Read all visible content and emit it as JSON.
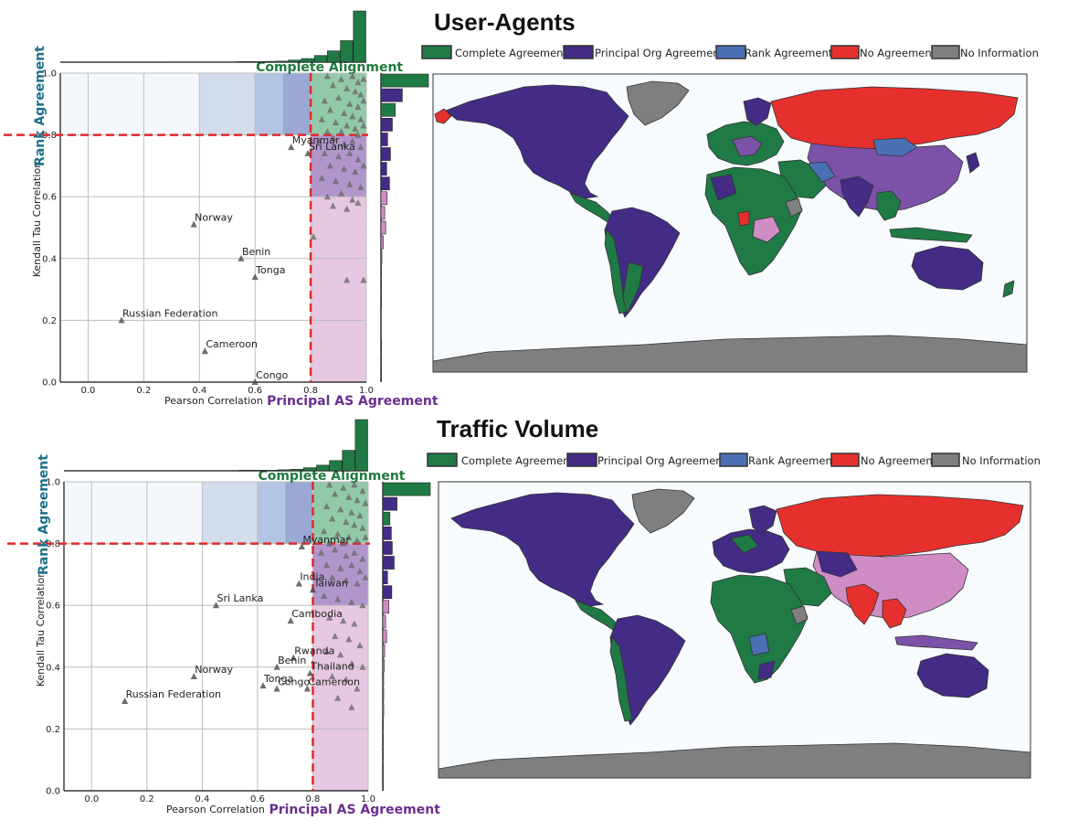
{
  "colors": {
    "complete": "#1f7a45",
    "principal": "#432b86",
    "rank": "#4a6fb5",
    "none": "#e5302e",
    "noinfo": "#7f7f7f",
    "pink": "#cf8cc5",
    "ocean": "#f8fbfe",
    "threshold": "#e02a2a"
  },
  "legend": [
    {
      "key": "complete",
      "label": "Complete Agreement"
    },
    {
      "key": "principal",
      "label": "Principal Org Agreement"
    },
    {
      "key": "rank",
      "label": "Rank Agreement"
    },
    {
      "key": "none",
      "label": "No Agreement"
    },
    {
      "key": "noinfo",
      "label": "No Information"
    }
  ],
  "chart_data": [
    {
      "type": "scatter",
      "panel_title": "User-Agents",
      "xlabel": "Pearson Correlation",
      "ylabel": "Kendall Tau Correlation",
      "xlim": [
        -0.1,
        1.0
      ],
      "ylim": [
        0.0,
        1.0
      ],
      "xticks": [
        "0.0",
        "0.2",
        "0.4",
        "0.6",
        "0.8",
        "1.0"
      ],
      "yticks": [
        "0.0",
        "0.2",
        "0.4",
        "0.6",
        "0.8",
        "1.0"
      ],
      "threshold": 0.8,
      "region_labels": {
        "rank": "Rank Agreement",
        "principal": "Principal AS Agreement",
        "complete": "Complete Alignment"
      },
      "labeled_points": [
        {
          "label": "Myanmar",
          "x": 0.73,
          "y": 0.76
        },
        {
          "label": "Sri Lanka",
          "x": 0.79,
          "y": 0.74
        },
        {
          "label": "Norway",
          "x": 0.38,
          "y": 0.51
        },
        {
          "label": "Benin",
          "x": 0.55,
          "y": 0.4
        },
        {
          "label": "Tonga",
          "x": 0.6,
          "y": 0.34
        },
        {
          "label": "Russian Federation",
          "x": 0.12,
          "y": 0.2
        },
        {
          "label": "Cameroon",
          "x": 0.42,
          "y": 0.1
        },
        {
          "label": "Congo",
          "x": 0.6,
          "y": 0.0
        }
      ],
      "other_points": [
        [
          0.86,
          0.99
        ],
        [
          0.91,
          0.98
        ],
        [
          0.95,
          0.99
        ],
        [
          0.97,
          0.97
        ],
        [
          0.99,
          0.98
        ],
        [
          0.88,
          0.96
        ],
        [
          0.93,
          0.95
        ],
        [
          0.96,
          0.94
        ],
        [
          0.98,
          0.93
        ],
        [
          0.85,
          0.91
        ],
        [
          0.9,
          0.92
        ],
        [
          0.94,
          0.9
        ],
        [
          0.97,
          0.89
        ],
        [
          0.99,
          0.91
        ],
        [
          0.87,
          0.88
        ],
        [
          0.92,
          0.87
        ],
        [
          0.95,
          0.86
        ],
        [
          0.98,
          0.85
        ],
        [
          0.84,
          0.85
        ],
        [
          0.89,
          0.84
        ],
        [
          0.93,
          0.83
        ],
        [
          0.96,
          0.82
        ],
        [
          0.99,
          0.83
        ],
        [
          0.86,
          0.81
        ],
        [
          0.91,
          0.81
        ],
        [
          0.97,
          0.8
        ],
        [
          0.83,
          0.78
        ],
        [
          0.88,
          0.79
        ],
        [
          0.92,
          0.77
        ],
        [
          0.95,
          0.78
        ],
        [
          0.98,
          0.76
        ],
        [
          0.85,
          0.74
        ],
        [
          0.9,
          0.73
        ],
        [
          0.94,
          0.74
        ],
        [
          0.97,
          0.72
        ],
        [
          0.99,
          0.7
        ],
        [
          0.87,
          0.7
        ],
        [
          0.92,
          0.69
        ],
        [
          0.96,
          0.68
        ],
        [
          0.84,
          0.66
        ],
        [
          0.89,
          0.65
        ],
        [
          0.94,
          0.64
        ],
        [
          0.98,
          0.63
        ],
        [
          0.86,
          0.6
        ],
        [
          0.91,
          0.61
        ],
        [
          0.95,
          0.59
        ],
        [
          0.88,
          0.57
        ],
        [
          0.93,
          0.56
        ],
        [
          0.97,
          0.58
        ],
        [
          0.81,
          0.47
        ],
        [
          0.93,
          0.33
        ],
        [
          0.99,
          0.33
        ]
      ],
      "top_hist": [
        0.005,
        0.005,
        0.005,
        0.005,
        0.005,
        0.01,
        0.01,
        0.015,
        0.02,
        0.04,
        0.07,
        0.13,
        0.22,
        0.42,
        1.0
      ],
      "right_hist": [
        0.01,
        0.01,
        0.01,
        0.0,
        0.0,
        0.01,
        0.01,
        0.01,
        0.02,
        0.05,
        0.1,
        0.08,
        0.13,
        0.18,
        0.12,
        0.2,
        0.14,
        0.24,
        0.3,
        0.45,
        1.0
      ]
    },
    {
      "type": "scatter",
      "panel_title": "Traffic Volume",
      "xlabel": "Pearson Correlation",
      "ylabel": "Kendall Tau Correlation",
      "xlim": [
        -0.1,
        1.0
      ],
      "ylim": [
        0.0,
        1.0
      ],
      "xticks": [
        "0.0",
        "0.2",
        "0.4",
        "0.6",
        "0.8",
        "1.0"
      ],
      "yticks": [
        "0.0",
        "0.2",
        "0.4",
        "0.6",
        "0.8",
        "1.0"
      ],
      "threshold": 0.8,
      "region_labels": {
        "rank": "Rank Agreement",
        "principal": "Principal AS Agreement",
        "complete": "Complete Alignment"
      },
      "labeled_points": [
        {
          "label": "Myanmar",
          "x": 0.76,
          "y": 0.79
        },
        {
          "label": "India",
          "x": 0.75,
          "y": 0.67
        },
        {
          "label": "Taiwan",
          "x": 0.8,
          "y": 0.65
        },
        {
          "label": "Sri Lanka",
          "x": 0.45,
          "y": 0.6
        },
        {
          "label": "Cambodia",
          "x": 0.72,
          "y": 0.55
        },
        {
          "label": "Rwanda",
          "x": 0.73,
          "y": 0.43
        },
        {
          "label": "Benin",
          "x": 0.67,
          "y": 0.4
        },
        {
          "label": "Thailand",
          "x": 0.79,
          "y": 0.38
        },
        {
          "label": "Norway",
          "x": 0.37,
          "y": 0.37
        },
        {
          "label": "Tonga",
          "x": 0.62,
          "y": 0.34
        },
        {
          "label": "Congo",
          "x": 0.67,
          "y": 0.33
        },
        {
          "label": "Cameroon",
          "x": 0.78,
          "y": 0.33
        },
        {
          "label": "Russian Federation",
          "x": 0.12,
          "y": 0.29
        }
      ],
      "other_points": [
        [
          0.86,
          0.99
        ],
        [
          0.91,
          0.98
        ],
        [
          0.95,
          0.99
        ],
        [
          0.98,
          0.97
        ],
        [
          0.88,
          0.96
        ],
        [
          0.93,
          0.95
        ],
        [
          0.96,
          0.94
        ],
        [
          0.99,
          0.93
        ],
        [
          0.85,
          0.92
        ],
        [
          0.9,
          0.91
        ],
        [
          0.94,
          0.9
        ],
        [
          0.97,
          0.89
        ],
        [
          0.87,
          0.88
        ],
        [
          0.92,
          0.87
        ],
        [
          0.95,
          0.86
        ],
        [
          0.98,
          0.85
        ],
        [
          0.84,
          0.84
        ],
        [
          0.89,
          0.83
        ],
        [
          0.93,
          0.82
        ],
        [
          0.96,
          0.81
        ],
        [
          0.99,
          0.82
        ],
        [
          0.86,
          0.8
        ],
        [
          0.91,
          0.8
        ],
        [
          0.83,
          0.77
        ],
        [
          0.88,
          0.78
        ],
        [
          0.92,
          0.76
        ],
        [
          0.95,
          0.77
        ],
        [
          0.98,
          0.75
        ],
        [
          0.85,
          0.73
        ],
        [
          0.9,
          0.72
        ],
        [
          0.94,
          0.73
        ],
        [
          0.97,
          0.71
        ],
        [
          0.87,
          0.69
        ],
        [
          0.92,
          0.68
        ],
        [
          0.96,
          0.67
        ],
        [
          0.99,
          0.69
        ],
        [
          0.84,
          0.63
        ],
        [
          0.89,
          0.62
        ],
        [
          0.94,
          0.61
        ],
        [
          0.98,
          0.6
        ],
        [
          0.86,
          0.56
        ],
        [
          0.91,
          0.55
        ],
        [
          0.95,
          0.54
        ],
        [
          0.88,
          0.5
        ],
        [
          0.93,
          0.49
        ],
        [
          0.97,
          0.47
        ],
        [
          0.85,
          0.45
        ],
        [
          0.9,
          0.44
        ],
        [
          0.94,
          0.41
        ],
        [
          0.98,
          0.4
        ],
        [
          0.87,
          0.37
        ],
        [
          0.92,
          0.36
        ],
        [
          0.96,
          0.33
        ],
        [
          0.89,
          0.3
        ],
        [
          0.94,
          0.27
        ]
      ],
      "top_hist": [
        0.005,
        0.005,
        0.005,
        0.005,
        0.005,
        0.01,
        0.01,
        0.01,
        0.02,
        0.03,
        0.06,
        0.11,
        0.2,
        0.4,
        1.0
      ],
      "right_hist": [
        0.01,
        0.01,
        0.01,
        0.01,
        0.01,
        0.02,
        0.02,
        0.02,
        0.03,
        0.04,
        0.08,
        0.06,
        0.13,
        0.19,
        0.1,
        0.24,
        0.2,
        0.18,
        0.15,
        0.3,
        1.0
      ]
    }
  ]
}
